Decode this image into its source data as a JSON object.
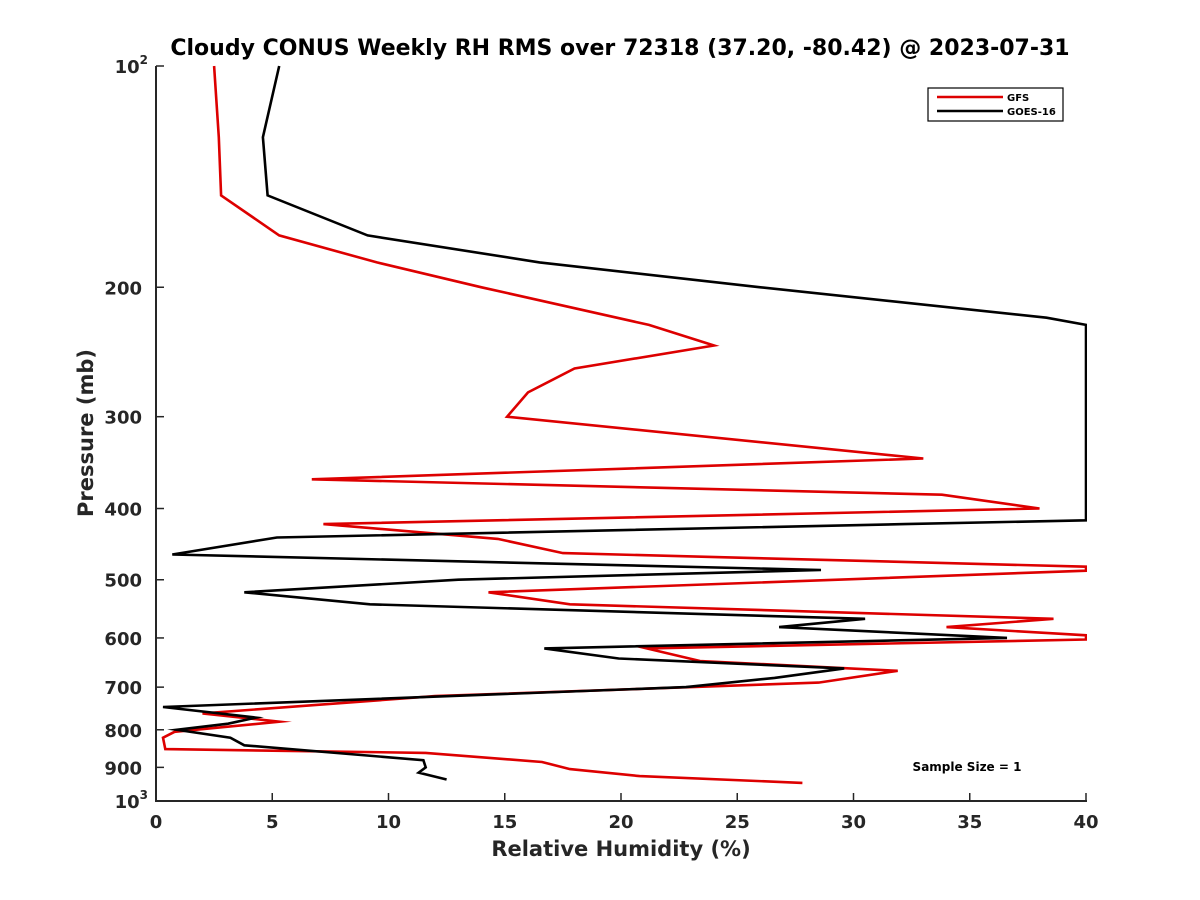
{
  "chart_data": {
    "type": "line",
    "title": "Cloudy CONUS Weekly RH RMS over 72318 (37.20, -80.42) @ 2023-07-31",
    "xlabel": "Relative Humidity (%)",
    "ylabel": "Pressure (mb)",
    "xlim": [
      0,
      40
    ],
    "ylim": [
      100,
      1000
    ],
    "yscale": "log",
    "y_reversed": true,
    "grid": false,
    "legend_position": "top-right",
    "x_ticks": [
      {
        "value": 0,
        "label": "0"
      },
      {
        "value": 5,
        "label": "5"
      },
      {
        "value": 10,
        "label": "10"
      },
      {
        "value": 15,
        "label": "15"
      },
      {
        "value": 20,
        "label": "20"
      },
      {
        "value": 25,
        "label": "25"
      },
      {
        "value": 30,
        "label": "30"
      },
      {
        "value": 35,
        "label": "35"
      },
      {
        "value": 40,
        "label": "40"
      }
    ],
    "y_ticks": [
      {
        "value": 200,
        "label": "200"
      },
      {
        "value": 300,
        "label": "300"
      },
      {
        "value": 400,
        "label": "400"
      },
      {
        "value": 500,
        "label": "500"
      },
      {
        "value": 600,
        "label": "600"
      },
      {
        "value": 700,
        "label": "700"
      },
      {
        "value": 800,
        "label": "800"
      },
      {
        "value": 900,
        "label": "900"
      }
    ],
    "y_power_ticks": [
      {
        "value": 100,
        "base": "10",
        "exp": "2"
      },
      {
        "value": 1000,
        "base": "10",
        "exp": "3"
      }
    ],
    "series": [
      {
        "name": "GFS",
        "color": "#dd0000",
        "points": [
          [
            2.5,
            100
          ],
          [
            2.7,
            125
          ],
          [
            2.8,
            150
          ],
          [
            5.3,
            170
          ],
          [
            9.5,
            185
          ],
          [
            14.0,
            200
          ],
          [
            21.2,
            225
          ],
          [
            24.0,
            240
          ],
          [
            18.0,
            258
          ],
          [
            16.0,
            278
          ],
          [
            15.1,
            300
          ],
          [
            33.0,
            342
          ],
          [
            6.7,
            365
          ],
          [
            33.8,
            383
          ],
          [
            38.0,
            400
          ],
          [
            7.2,
            420
          ],
          [
            14.7,
            440
          ],
          [
            17.5,
            460
          ],
          [
            40.0,
            480
          ],
          [
            40.0,
            486
          ],
          [
            14.3,
            520
          ],
          [
            17.8,
            540
          ],
          [
            38.6,
            565
          ],
          [
            34.0,
            580
          ],
          [
            40.0,
            595
          ],
          [
            40.0,
            603
          ],
          [
            21.1,
            620
          ],
          [
            23.4,
            645
          ],
          [
            31.9,
            665
          ],
          [
            28.5,
            690
          ],
          [
            12.0,
            720
          ],
          [
            2.0,
            760
          ],
          [
            5.3,
            780
          ],
          [
            0.8,
            805
          ],
          [
            0.3,
            820
          ],
          [
            0.4,
            850
          ],
          [
            11.6,
            860
          ],
          [
            16.6,
            885
          ],
          [
            17.8,
            905
          ],
          [
            20.8,
            925
          ],
          [
            27.8,
            945
          ]
        ]
      },
      {
        "name": "GOES-16",
        "color": "#000000",
        "points": [
          [
            5.3,
            100
          ],
          [
            4.6,
            125
          ],
          [
            4.8,
            150
          ],
          [
            9.1,
            170
          ],
          [
            16.5,
            185
          ],
          [
            26.0,
            200
          ],
          [
            38.3,
            220
          ],
          [
            40.0,
            225
          ],
          [
            40.0,
            415
          ],
          [
            32.2,
            420
          ],
          [
            5.2,
            438
          ],
          [
            0.7,
            462
          ],
          [
            28.6,
            485
          ],
          [
            13.0,
            500
          ],
          [
            3.8,
            520
          ],
          [
            9.2,
            540
          ],
          [
            30.5,
            565
          ],
          [
            26.8,
            580
          ],
          [
            36.6,
            600
          ],
          [
            16.7,
            620
          ],
          [
            19.9,
            640
          ],
          [
            29.6,
            660
          ],
          [
            26.6,
            680
          ],
          [
            22.8,
            700
          ],
          [
            0.3,
            745
          ],
          [
            4.3,
            770
          ],
          [
            3.1,
            785
          ],
          [
            0.9,
            800
          ],
          [
            3.2,
            820
          ],
          [
            3.8,
            840
          ],
          [
            11.5,
            880
          ],
          [
            11.6,
            900
          ],
          [
            11.3,
            915
          ],
          [
            12.5,
            935
          ]
        ]
      }
    ],
    "annotations": [
      {
        "text": "Sample Size = 1"
      }
    ]
  }
}
